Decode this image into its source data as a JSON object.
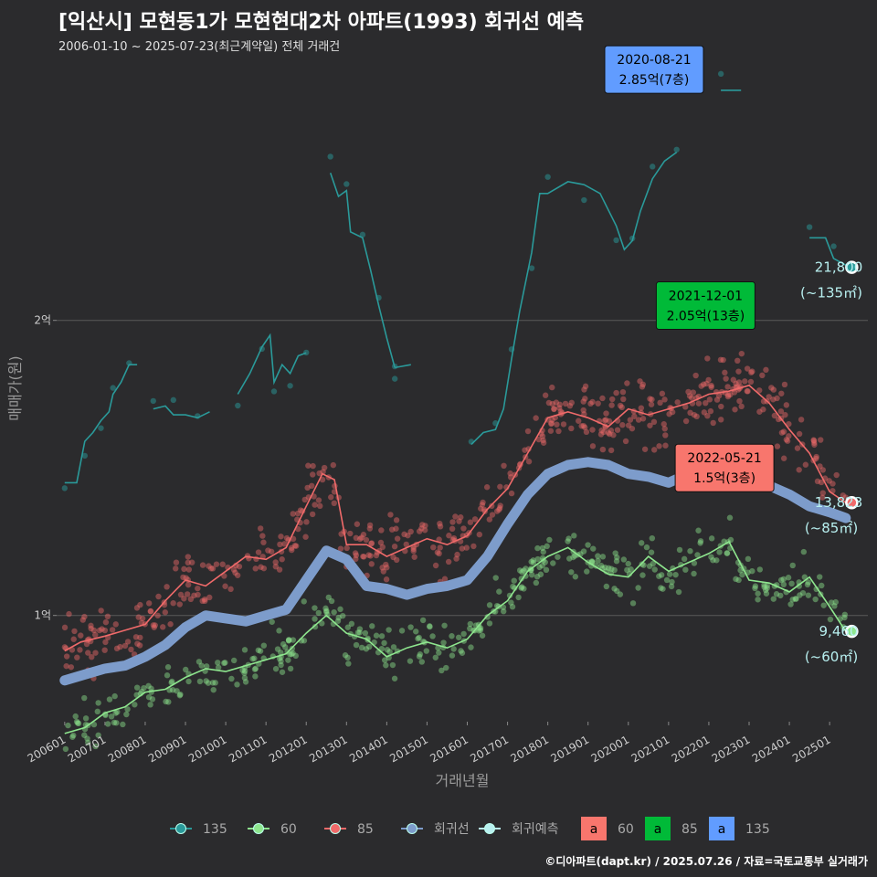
{
  "header": {
    "title": "[익산시] 모현동1가 모현현대2차 아파트(1993) 회귀선 예측",
    "subtitle": "2006-01-10 ~ 2025-07-23(최근계약일) 전체 거래건"
  },
  "footer": {
    "credit": "©디아파트(dapt.kr) / 2025.07.26 / 자료=국토교통부 실거래가"
  },
  "colors": {
    "background": "#2b2b2d",
    "s135": "#2a9a9a",
    "s85": "#f06a6a",
    "s60": "#8ee68e",
    "regression": "#7d9ccb",
    "forecast": "#b8f0f0",
    "label60": "#f8766d",
    "label85": "#00ba38",
    "label135": "#619cff"
  },
  "chart_data": {
    "type": "scatter",
    "xlabel": "거래년월",
    "ylabel": "매매가(원)",
    "x_ticks": [
      "200601",
      "200701",
      "200801",
      "200901",
      "201001",
      "201101",
      "201201",
      "201301",
      "201401",
      "201501",
      "201601",
      "201701",
      "201801",
      "201901",
      "202001",
      "202101",
      "202201",
      "202301",
      "202401",
      "202501"
    ],
    "y_ticks": [
      {
        "value": 10000,
        "label": "1억"
      },
      {
        "value": 20000,
        "label": "2억"
      }
    ],
    "ylim": [
      6400,
      29000
    ],
    "xlim": [
      2005.8,
      2025.95
    ],
    "grid": "horizontal",
    "unit": "만원",
    "series": [
      {
        "name": "135",
        "key": "s135",
        "trend_segments": [
          [
            [
              2006.0,
              14500
            ],
            [
              2006.3,
              14500
            ],
            [
              2006.5,
              15900
            ],
            [
              2006.7,
              16200
            ],
            [
              2006.9,
              16600
            ],
            [
              2007.1,
              16900
            ],
            [
              2007.2,
              17500
            ],
            [
              2007.4,
              17900
            ],
            [
              2007.6,
              18500
            ],
            [
              2007.8,
              18500
            ]
          ],
          [
            [
              2008.2,
              17000
            ],
            [
              2008.5,
              17100
            ],
            [
              2008.7,
              16800
            ],
            [
              2009.0,
              16800
            ],
            [
              2009.3,
              16700
            ],
            [
              2009.6,
              16900
            ]
          ],
          [
            [
              2010.3,
              17500
            ],
            [
              2010.6,
              18200
            ],
            [
              2010.9,
              19100
            ],
            [
              2011.1,
              19500
            ],
            [
              2011.2,
              17900
            ],
            [
              2011.4,
              18500
            ],
            [
              2011.6,
              18200
            ],
            [
              2011.8,
              18800
            ],
            [
              2012.0,
              18900
            ]
          ],
          [
            [
              2012.6,
              25000
            ],
            [
              2012.8,
              24200
            ],
            [
              2013.0,
              24400
            ],
            [
              2013.1,
              23000
            ],
            [
              2013.4,
              22800
            ],
            [
              2013.6,
              21700
            ],
            [
              2013.8,
              20500
            ],
            [
              2014.0,
              19400
            ],
            [
              2014.2,
              18400
            ]
          ],
          [
            [
              2014.2,
              18400
            ],
            [
              2014.6,
              18500
            ]
          ],
          [
            [
              2016.1,
              15800
            ],
            [
              2016.4,
              16200
            ],
            [
              2016.7,
              16300
            ],
            [
              2016.9,
              17000
            ],
            [
              2017.1,
              18700
            ],
            [
              2017.3,
              20300
            ],
            [
              2017.6,
              22300
            ],
            [
              2017.8,
              24300
            ],
            [
              2018.0,
              24300
            ],
            [
              2018.5,
              24700
            ],
            [
              2018.9,
              24600
            ],
            [
              2019.3,
              24300
            ],
            [
              2019.7,
              23200
            ],
            [
              2019.9,
              22400
            ],
            [
              2020.1,
              22700
            ],
            [
              2020.3,
              23700
            ],
            [
              2020.6,
              24800
            ],
            [
              2020.9,
              25400
            ],
            [
              2021.2,
              25700
            ]
          ],
          [
            [
              2022.3,
              27800
            ],
            [
              2022.8,
              27800
            ]
          ],
          [
            [
              2024.5,
              22800
            ],
            [
              2024.9,
              22800
            ],
            [
              2025.1,
              22100
            ],
            [
              2025.5,
              21800
            ]
          ]
        ]
      },
      {
        "name": "85",
        "key": "s85",
        "trend": [
          [
            2006.0,
            8800
          ],
          [
            2006.4,
            9100
          ],
          [
            2007.0,
            9300
          ],
          [
            2007.5,
            9500
          ],
          [
            2008.0,
            9700
          ],
          [
            2008.5,
            10500
          ],
          [
            2009.0,
            11200
          ],
          [
            2009.5,
            11000
          ],
          [
            2010.0,
            11500
          ],
          [
            2010.5,
            12000
          ],
          [
            2011.0,
            11900
          ],
          [
            2011.5,
            12300
          ],
          [
            2012.0,
            13700
          ],
          [
            2012.4,
            14800
          ],
          [
            2012.7,
            14600
          ],
          [
            2013.0,
            12400
          ],
          [
            2013.5,
            12400
          ],
          [
            2014.0,
            12000
          ],
          [
            2014.5,
            12300
          ],
          [
            2015.0,
            12600
          ],
          [
            2015.5,
            12400
          ],
          [
            2016.0,
            12700
          ],
          [
            2016.5,
            13600
          ],
          [
            2017.0,
            14300
          ],
          [
            2017.5,
            15500
          ],
          [
            2018.0,
            16700
          ],
          [
            2018.5,
            16900
          ],
          [
            2019.0,
            16700
          ],
          [
            2019.5,
            16400
          ],
          [
            2020.0,
            17000
          ],
          [
            2020.5,
            16800
          ],
          [
            2021.0,
            17000
          ],
          [
            2021.5,
            17200
          ],
          [
            2022.0,
            17500
          ],
          [
            2022.5,
            17600
          ],
          [
            2023.0,
            17800
          ],
          [
            2023.5,
            17200
          ],
          [
            2024.0,
            16300
          ],
          [
            2024.5,
            15500
          ],
          [
            2025.0,
            14200
          ],
          [
            2025.4,
            13823
          ]
        ]
      },
      {
        "name": "60",
        "key": "s60",
        "trend": [
          [
            2006.0,
            6000
          ],
          [
            2006.5,
            6200
          ],
          [
            2007.0,
            6700
          ],
          [
            2007.5,
            6900
          ],
          [
            2008.0,
            7400
          ],
          [
            2008.5,
            7500
          ],
          [
            2009.0,
            7900
          ],
          [
            2009.5,
            8200
          ],
          [
            2010.0,
            8100
          ],
          [
            2010.5,
            8300
          ],
          [
            2011.0,
            8500
          ],
          [
            2011.5,
            8700
          ],
          [
            2012.0,
            9400
          ],
          [
            2012.5,
            10000
          ],
          [
            2013.0,
            9400
          ],
          [
            2013.5,
            9200
          ],
          [
            2014.0,
            8600
          ],
          [
            2014.5,
            8900
          ],
          [
            2015.0,
            9100
          ],
          [
            2015.5,
            8900
          ],
          [
            2016.0,
            9200
          ],
          [
            2016.5,
            10000
          ],
          [
            2017.0,
            10500
          ],
          [
            2017.5,
            11500
          ],
          [
            2018.0,
            12000
          ],
          [
            2018.5,
            12300
          ],
          [
            2019.0,
            11800
          ],
          [
            2019.5,
            11400
          ],
          [
            2020.0,
            11300
          ],
          [
            2020.5,
            12000
          ],
          [
            2021.0,
            11500
          ],
          [
            2021.5,
            11800
          ],
          [
            2022.0,
            12100
          ],
          [
            2022.5,
            12500
          ],
          [
            2023.0,
            11200
          ],
          [
            2023.5,
            11100
          ],
          [
            2024.0,
            10800
          ],
          [
            2024.5,
            11300
          ],
          [
            2025.0,
            10300
          ],
          [
            2025.4,
            9460
          ]
        ]
      },
      {
        "name": "회귀선",
        "key": "regression",
        "trend": [
          [
            2006.0,
            7800
          ],
          [
            2006.5,
            8000
          ],
          [
            2007.0,
            8200
          ],
          [
            2007.5,
            8300
          ],
          [
            2008.0,
            8600
          ],
          [
            2008.5,
            9000
          ],
          [
            2009.0,
            9600
          ],
          [
            2009.5,
            10000
          ],
          [
            2010.0,
            9900
          ],
          [
            2010.5,
            9800
          ],
          [
            2011.0,
            10000
          ],
          [
            2011.5,
            10200
          ],
          [
            2012.0,
            11200
          ],
          [
            2012.5,
            12200
          ],
          [
            2013.0,
            11900
          ],
          [
            2013.5,
            11000
          ],
          [
            2014.0,
            10900
          ],
          [
            2014.5,
            10700
          ],
          [
            2015.0,
            10900
          ],
          [
            2015.5,
            11000
          ],
          [
            2016.0,
            11200
          ],
          [
            2016.5,
            12000
          ],
          [
            2017.0,
            13100
          ],
          [
            2017.5,
            14100
          ],
          [
            2018.0,
            14800
          ],
          [
            2018.5,
            15100
          ],
          [
            2019.0,
            15200
          ],
          [
            2019.5,
            15100
          ],
          [
            2020.0,
            14800
          ],
          [
            2020.5,
            14700
          ],
          [
            2021.0,
            14500
          ],
          [
            2021.5,
            14800
          ],
          [
            2022.0,
            15000
          ],
          [
            2022.5,
            15100
          ],
          [
            2023.0,
            14800
          ],
          [
            2023.5,
            14400
          ],
          [
            2024.0,
            14100
          ],
          [
            2024.5,
            13700
          ],
          [
            2025.0,
            13500
          ],
          [
            2025.4,
            13300
          ]
        ]
      }
    ],
    "forecast_points": [
      {
        "series": "135",
        "x": 2025.55,
        "y": 21800,
        "value_label": "21,800",
        "area_label": "(~135㎡)"
      },
      {
        "series": "85",
        "x": 2025.55,
        "y": 13823,
        "value_label": "13,823",
        "area_label": "(~85㎡)"
      },
      {
        "series": "60",
        "x": 2025.55,
        "y": 9460,
        "value_label": "9,460",
        "area_label": "(~60㎡)"
      }
    ],
    "max_callouts": [
      {
        "series": "135",
        "date": "2020-08-21",
        "price": "2.85억(7층)",
        "x": 2020.64,
        "y": 28500,
        "color": "label135"
      },
      {
        "series": "85",
        "date": "2021-12-01",
        "price": "2.05억(13층)",
        "x": 2021.92,
        "y": 20500,
        "color": "label85"
      },
      {
        "series": "60",
        "date": "2022-05-21",
        "price": "1.5억(3층)",
        "x": 2022.39,
        "y": 15000,
        "color": "label60"
      }
    ],
    "legend": {
      "placement": "bottom",
      "lines": [
        {
          "label": "135",
          "color": "s135"
        },
        {
          "label": "60",
          "color": "s60"
        },
        {
          "label": "85",
          "color": "s85"
        },
        {
          "label": "회귀선",
          "color": "regression"
        },
        {
          "label": "회귀예측",
          "color": "forecast"
        }
      ],
      "boxes": [
        {
          "label": "60",
          "color": "label60",
          "glyph": "a"
        },
        {
          "label": "85",
          "color": "label85",
          "glyph": "a"
        },
        {
          "label": "135",
          "color": "label135",
          "glyph": "a"
        }
      ]
    }
  }
}
